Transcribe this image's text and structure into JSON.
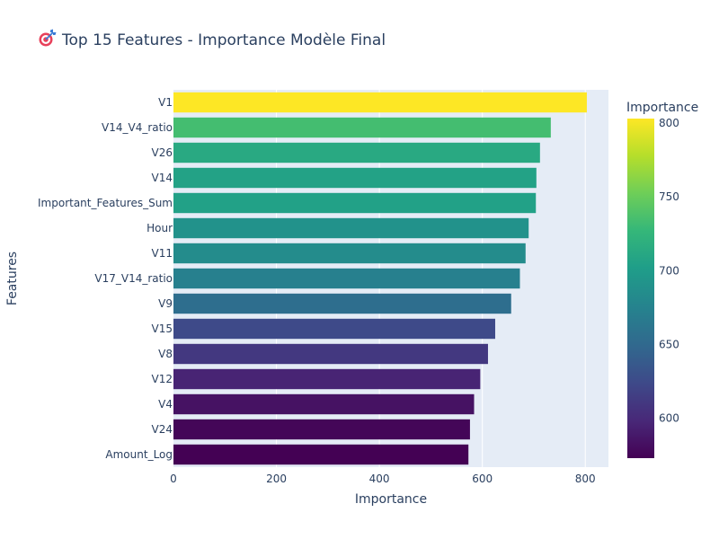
{
  "chart_data": {
    "type": "bar",
    "orientation": "horizontal",
    "title": "Top 15 Features - Importance Modèle Final",
    "title_icon": "target-icon",
    "xlabel": "Importance",
    "ylabel": "Features",
    "xlim": [
      0,
      845
    ],
    "x_ticks": [
      0,
      200,
      400,
      600,
      800
    ],
    "x_tick_labels": [
      "0",
      "200",
      "400",
      "600",
      "800"
    ],
    "categories": [
      "V1",
      "V14_V4_ratio",
      "V26",
      "V14",
      "Important_Features_Sum",
      "Hour",
      "V11",
      "V17_V14_ratio",
      "V9",
      "V15",
      "V8",
      "V12",
      "V4",
      "V24",
      "Amount_Log"
    ],
    "values": [
      803,
      733,
      712,
      705,
      704,
      690,
      684,
      673,
      656,
      625,
      611,
      596,
      584,
      576,
      573
    ],
    "colorscale": "Viridis",
    "colorbar": {
      "title": "Importance",
      "range": [
        573,
        803
      ],
      "ticks": [
        600,
        650,
        700,
        750,
        800
      ],
      "tick_labels": [
        "600",
        "650",
        "700",
        "750",
        "800"
      ]
    },
    "grid": true,
    "legend": "none"
  }
}
